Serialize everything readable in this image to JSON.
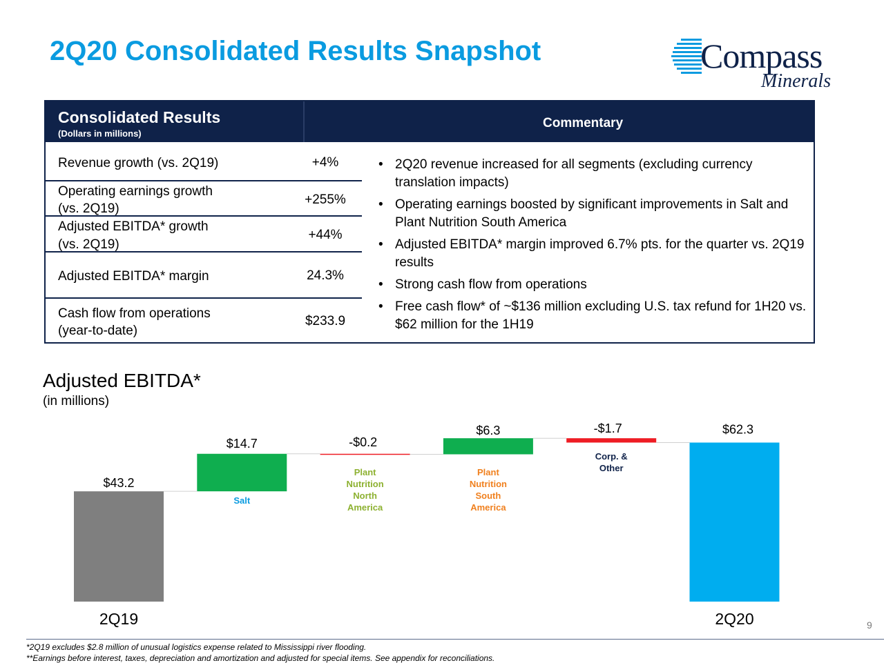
{
  "title": "2Q20 Consolidated Results Snapshot",
  "logo": {
    "line1": "Compass",
    "line2": "Minerals"
  },
  "table": {
    "header": "Consolidated Results",
    "subheader": "(Dollars in millions)",
    "commentary_header": "Commentary",
    "rows": [
      {
        "label1": "Revenue growth (vs. 2Q19)",
        "label2": "",
        "value": "+4%"
      },
      {
        "label1": "Operating earnings growth",
        "label2": "(vs. 2Q19)",
        "value": "+255%"
      },
      {
        "label1": "Adjusted EBITDA* growth",
        "label2": "(vs. 2Q19)",
        "value": "+44%"
      },
      {
        "label1": "Adjusted EBITDA* margin",
        "label2": "",
        "value": "24.3%"
      },
      {
        "label1": "Cash flow from operations",
        "label2": "(year-to-date)",
        "value": "$233.9"
      }
    ],
    "commentary": [
      "2Q20 revenue increased for all segments (excluding currency translation impacts)",
      "Operating earnings boosted by significant improvements in Salt and Plant Nutrition South America",
      "Adjusted EBITDA* margin improved 6.7% pts. for the quarter vs. 2Q19 results",
      "Strong cash flow from operations",
      "Free cash flow* of ~$136 million excluding U.S. tax refund for 1H20 vs. $62 million for the 1H19"
    ]
  },
  "chart_title": "Adjusted EBITDA*",
  "chart_subtitle": "(in millions)",
  "chart_data": {
    "type": "bar",
    "subtype": "waterfall",
    "title": "Adjusted EBITDA*",
    "subtitle": "(in millions)",
    "categories": [
      "2Q19",
      "Salt",
      "Plant Nutrition North America",
      "Plant Nutrition South America",
      "Corp. & Other",
      "2Q20"
    ],
    "values": [
      43.2,
      14.7,
      -0.2,
      6.3,
      -1.7,
      62.3
    ],
    "value_labels": [
      "$43.2",
      "$14.7",
      "-$0.2",
      "$6.3",
      "-$1.7",
      "$62.3"
    ],
    "segment_labels": [
      {
        "lines": []
      },
      {
        "lines": [
          "Salt"
        ]
      },
      {
        "lines": [
          "Plant",
          "Nutrition",
          "North",
          "America"
        ]
      },
      {
        "lines": [
          "Plant",
          "Nutrition",
          "South",
          "America"
        ]
      },
      {
        "lines": [
          "Corp. &",
          "Other"
        ]
      },
      {
        "lines": []
      }
    ],
    "axis_labels": [
      "2Q19",
      "",
      "",
      "",
      "",
      "2Q20"
    ],
    "bar_kinds": [
      "total",
      "delta",
      "delta",
      "delta",
      "delta",
      "total"
    ],
    "colors": [
      "#7f7f7f",
      "#0fae4f",
      "#ee1c24",
      "#0fae4f",
      "#ee1c24",
      "#00adef"
    ],
    "segment_label_colors": [
      "#000000",
      "#0a9be0",
      "#8db131",
      "#f0801e",
      "#0f2249",
      "#000000"
    ]
  },
  "page_number": "9",
  "footnotes": [
    "*2Q19 excludes $2.8 million of unusual logistics expense related to Mississippi river flooding.",
    "**Earnings before interest, taxes, depreciation and amortization and adjusted for special items. See appendix for reconciliations."
  ],
  "colors": {
    "title": "#0a9be0",
    "navy": "#0f2249"
  }
}
